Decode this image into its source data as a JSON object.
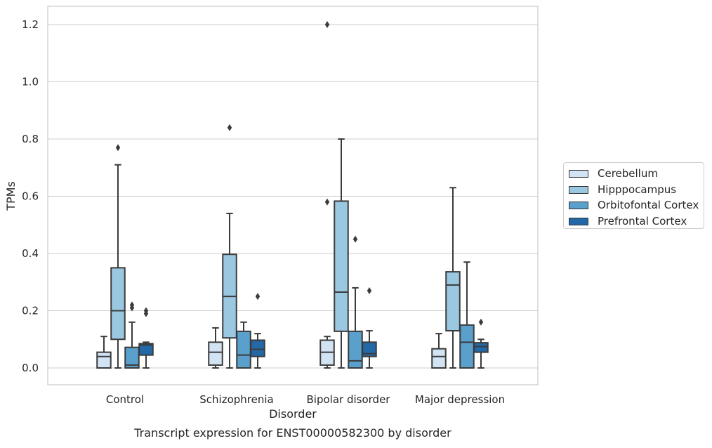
{
  "chart_data": {
    "type": "box",
    "title": "Transcript expression for ENST00000582300 by disorder",
    "xlabel": "Disorder",
    "ylabel": "TPMs",
    "ylim": [
      -0.058,
      1.26
    ],
    "yticks": [
      "0.0",
      "0.2",
      "0.4",
      "0.6",
      "0.8",
      "1.0",
      "1.2"
    ],
    "ytick_values": [
      0.0,
      0.2,
      0.4,
      0.6,
      0.8,
      1.0,
      1.2
    ],
    "grid": true,
    "legend_position": "right",
    "categories": [
      "Control",
      "Schizophrenia",
      "Bipolar disorder",
      "Major depression"
    ],
    "series": [
      {
        "name": "Cerebellum",
        "color": "#d2e3f3",
        "boxes": [
          {
            "whislo": 0.0,
            "q1": 0.0,
            "med": 0.04,
            "q3": 0.055,
            "whishi": 0.11,
            "fliers": []
          },
          {
            "whislo": 0.0,
            "q1": 0.01,
            "med": 0.055,
            "q3": 0.09,
            "whishi": 0.14,
            "fliers": []
          },
          {
            "whislo": 0.0,
            "q1": 0.01,
            "med": 0.055,
            "q3": 0.097,
            "whishi": 0.11,
            "fliers": [
              0.58,
              1.2
            ]
          },
          {
            "whislo": 0.0,
            "q1": 0.0,
            "med": 0.04,
            "q3": 0.067,
            "whishi": 0.12,
            "fliers": []
          }
        ]
      },
      {
        "name": "Hipppocampus",
        "color": "#9ac8e0",
        "boxes": [
          {
            "whislo": 0.0,
            "q1": 0.1,
            "med": 0.2,
            "q3": 0.35,
            "whishi": 0.71,
            "fliers": [
              0.77
            ]
          },
          {
            "whislo": 0.0,
            "q1": 0.105,
            "med": 0.25,
            "q3": 0.397,
            "whishi": 0.54,
            "fliers": [
              0.84
            ]
          },
          {
            "whislo": 0.0,
            "q1": 0.128,
            "med": 0.265,
            "q3": 0.583,
            "whishi": 0.8,
            "fliers": []
          },
          {
            "whislo": 0.0,
            "q1": 0.13,
            "med": 0.29,
            "q3": 0.336,
            "whishi": 0.63,
            "fliers": []
          }
        ]
      },
      {
        "name": "Orbitofontal Cortex",
        "color": "#5aa0cd",
        "boxes": [
          {
            "whislo": 0.0,
            "q1": 0.0,
            "med": 0.01,
            "q3": 0.072,
            "whishi": 0.16,
            "fliers": [
              0.21,
              0.22
            ]
          },
          {
            "whislo": 0.0,
            "q1": 0.0,
            "med": 0.045,
            "q3": 0.128,
            "whishi": 0.16,
            "fliers": []
          },
          {
            "whislo": 0.0,
            "q1": 0.0,
            "med": 0.025,
            "q3": 0.128,
            "whishi": 0.28,
            "fliers": [
              0.45
            ]
          },
          {
            "whislo": 0.0,
            "q1": 0.0,
            "med": 0.09,
            "q3": 0.15,
            "whishi": 0.37,
            "fliers": []
          }
        ]
      },
      {
        "name": "Prefrontal Cortex",
        "color": "#2369a8",
        "boxes": [
          {
            "whislo": 0.0,
            "q1": 0.045,
            "med": 0.08,
            "q3": 0.085,
            "whishi": 0.09,
            "fliers": [
              0.19,
              0.2
            ]
          },
          {
            "whislo": 0.0,
            "q1": 0.04,
            "med": 0.065,
            "q3": 0.097,
            "whishi": 0.12,
            "fliers": [
              0.25
            ]
          },
          {
            "whislo": 0.0,
            "q1": 0.04,
            "med": 0.05,
            "q3": 0.09,
            "whishi": 0.13,
            "fliers": [
              0.27
            ]
          },
          {
            "whislo": 0.0,
            "q1": 0.055,
            "med": 0.075,
            "q3": 0.088,
            "whishi": 0.1,
            "fliers": [
              0.16
            ]
          }
        ]
      }
    ]
  }
}
